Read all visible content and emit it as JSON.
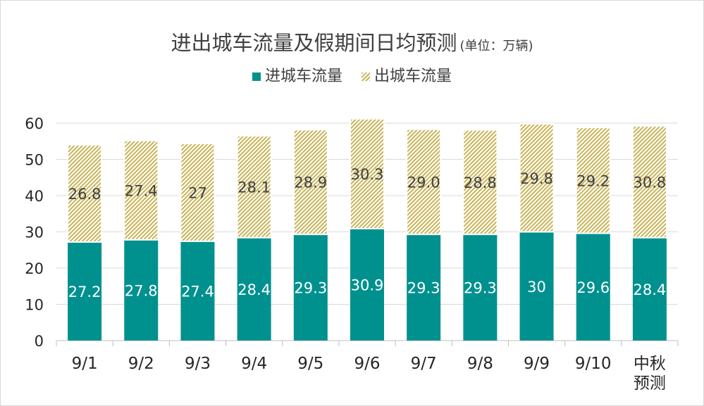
{
  "chart_data": {
    "type": "bar",
    "stacked": true,
    "title": "进出城车流量及假期间日均预测",
    "subtitle": "(单位：万辆)",
    "categories": [
      "9/1",
      "9/2",
      "9/3",
      "9/4",
      "9/5",
      "9/6",
      "9/7",
      "9/8",
      "9/9",
      "9/10",
      "中秋\n预测"
    ],
    "series": [
      {
        "name": "进城车流量",
        "values": [
          27.2,
          27.8,
          27.4,
          28.4,
          29.3,
          30.9,
          29.3,
          29.3,
          30,
          29.6,
          28.4
        ],
        "labels": [
          "27.2",
          "27.8",
          "27.4",
          "28.4",
          "29.3",
          "30.9",
          "29.3",
          "29.3",
          "30",
          "29.6",
          "28.4"
        ],
        "color": "#00918f"
      },
      {
        "name": "出城车流量",
        "values": [
          26.8,
          27.4,
          27,
          28.1,
          28.9,
          30.3,
          29.0,
          28.8,
          29.8,
          29.2,
          30.8
        ],
        "labels": [
          "26.8",
          "27.4",
          "27",
          "28.1",
          "28.9",
          "30.3",
          "29.0",
          "28.8",
          "29.8",
          "29.2",
          "30.8"
        ],
        "color": "#c9b458"
      }
    ],
    "ylim": [
      0,
      60
    ],
    "yticks": [
      "0",
      "10",
      "20",
      "30",
      "40",
      "50",
      "60"
    ],
    "grid": true,
    "legend_position": "top"
  }
}
